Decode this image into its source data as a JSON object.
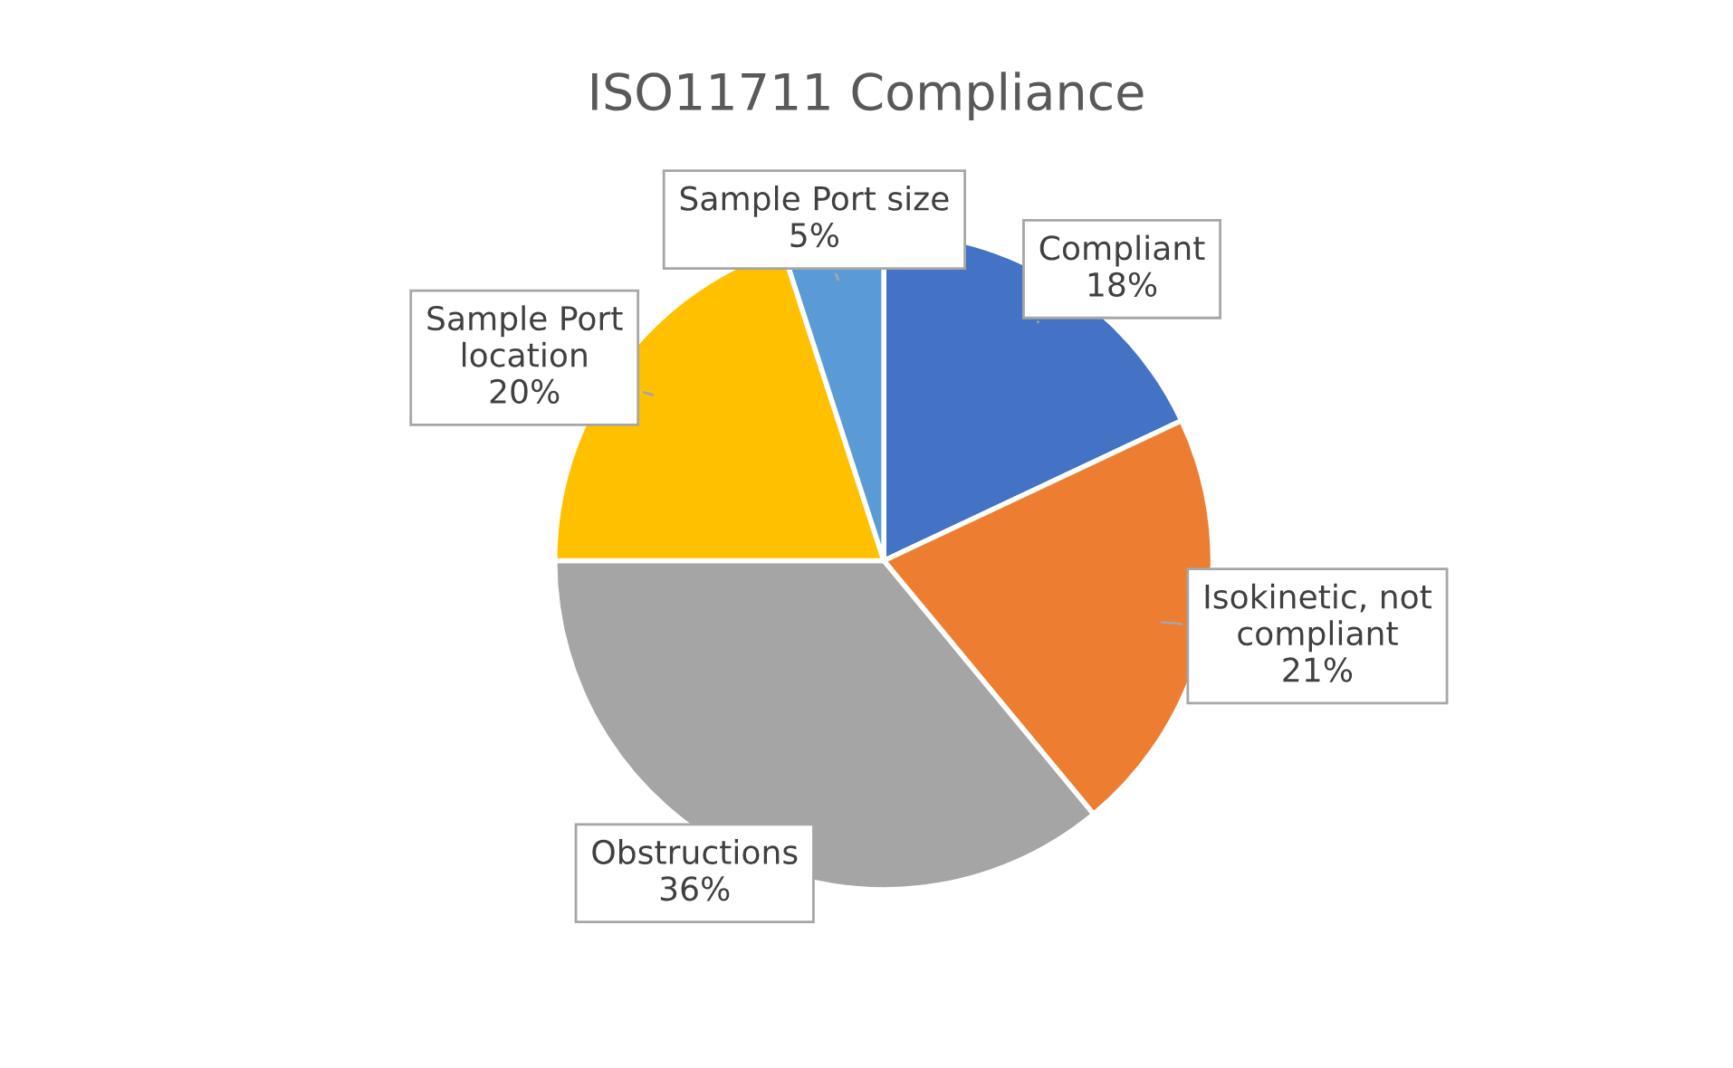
{
  "chart_data": {
    "type": "pie",
    "title": "ISO11711 Compliance",
    "categories": [
      "Compliant",
      "Isokinetic, not compliant",
      "Obstructions",
      "Sample Port location",
      "Sample Port size"
    ],
    "values": [
      18,
      21,
      36,
      20,
      5
    ],
    "value_labels": [
      "18%",
      "21%",
      "36%",
      "20%",
      "5%"
    ],
    "colors": [
      "#4472c4",
      "#ed7d31",
      "#a5a5a5",
      "#ffc000",
      "#5b9bd5"
    ],
    "legend": false
  }
}
